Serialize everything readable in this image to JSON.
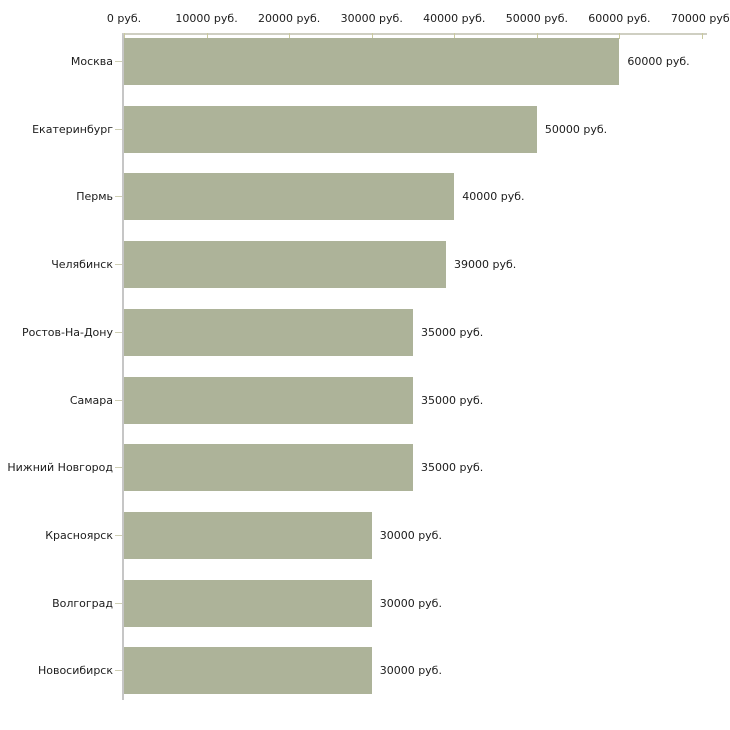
{
  "page": {
    "background": "#ffffff"
  },
  "chart_data": {
    "type": "bar",
    "orientation": "horizontal",
    "title": "",
    "xlabel": "",
    "ylabel": "",
    "unit": "руб.",
    "xlim": [
      0,
      70000
    ],
    "grid": "off",
    "legend": "none",
    "categories": [
      "Москва",
      "Екатеринбург",
      "Пермь",
      "Челябинск",
      "Ростов-На-Дону",
      "Самара",
      "Нижний Новгород",
      "Красноярск",
      "Волгоград",
      "Новосибирск"
    ],
    "values": [
      60000,
      50000,
      40000,
      39000,
      35000,
      35000,
      35000,
      30000,
      30000,
      30000
    ],
    "value_labels": [
      "60000 руб.",
      "50000 руб.",
      "40000 руб.",
      "39000 руб.",
      "35000 руб.",
      "35000 руб.",
      "35000 руб.",
      "30000 руб.",
      "30000 руб.",
      "30000 руб."
    ],
    "x_tick_values": [
      0,
      10000,
      20000,
      30000,
      40000,
      50000,
      60000,
      70000
    ],
    "x_tick_labels": [
      "0 руб.",
      "10000 руб.",
      "20000 руб.",
      "30000 руб.",
      "40000 руб.",
      "50000 руб.",
      "60000 руб.",
      "70000 руб."
    ],
    "colors": {
      "bar": "#adb399",
      "x_axis_line": "#cfcfc2",
      "y_axis_line": "#c6c6c6",
      "x_tick": "#c9c99e",
      "y_tick": "#cfcfb4",
      "text": "#1c1c1c",
      "background": "#ffffff"
    }
  }
}
